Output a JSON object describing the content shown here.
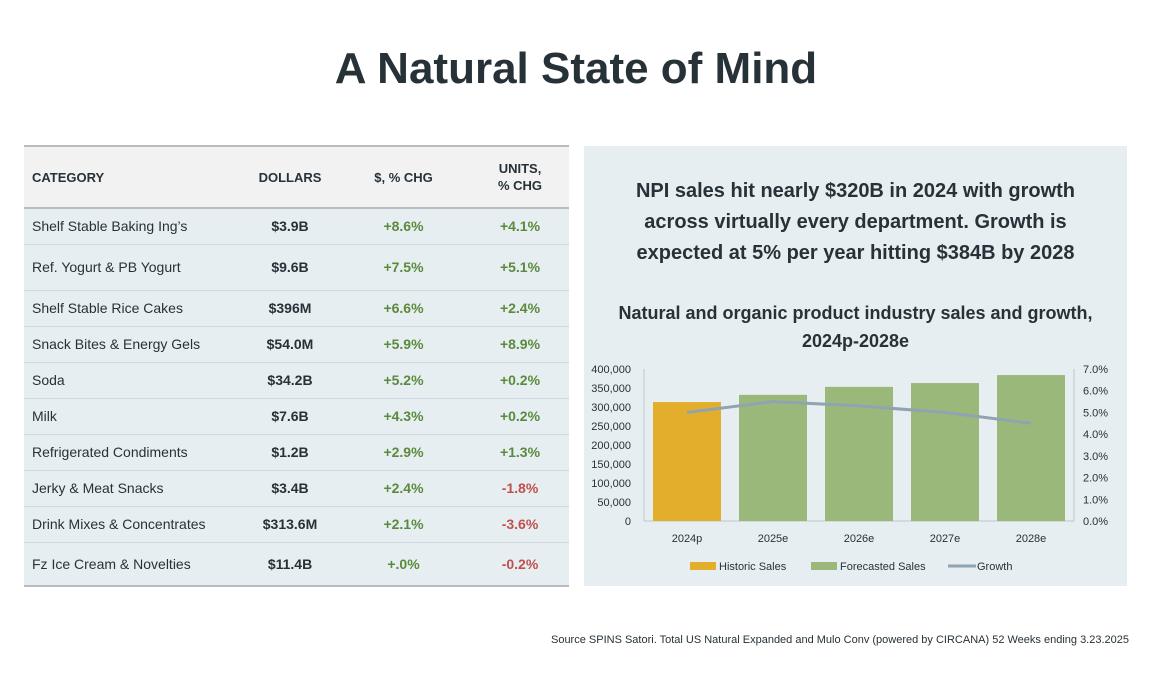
{
  "page": {
    "title": "A Natural State of Mind",
    "source": "Source SPINS Satori. Total US Natural Expanded and Mulo Conv (powered by CIRCANA) 52 Weeks ending 3.23.2025"
  },
  "table": {
    "headers": {
      "category": "CATEGORY",
      "dollars": "DOLLARS",
      "dollars_chg": "$, % CHG",
      "units_chg_line1": "UNITS,",
      "units_chg_line2": "% CHG"
    },
    "rows": [
      {
        "category": "Shelf Stable Baking Ing’s",
        "dollars": "$3.9B",
        "dollars_chg": "+8.6%",
        "units_chg": "+4.1%"
      },
      {
        "category": "Ref. Yogurt & PB Yogurt",
        "dollars": "$9.6B",
        "dollars_chg": "+7.5%",
        "units_chg": "+5.1%"
      },
      {
        "category": "Shelf Stable Rice Cakes",
        "dollars": "$396M",
        "dollars_chg": "+6.6%",
        "units_chg": "+2.4%"
      },
      {
        "category": "Snack Bites & Energy Gels",
        "dollars": "$54.0M",
        "dollars_chg": "+5.9%",
        "units_chg": "+8.9%"
      },
      {
        "category": "Soda",
        "dollars": "$34.2B",
        "dollars_chg": "+5.2%",
        "units_chg": "+0.2%"
      },
      {
        "category": "Milk",
        "dollars": "$7.6B",
        "dollars_chg": "+4.3%",
        "units_chg": "+0.2%"
      },
      {
        "category": "Refrigerated Condiments",
        "dollars": "$1.2B",
        "dollars_chg": "+2.9%",
        "units_chg": "+1.3%"
      },
      {
        "category": "Jerky & Meat Snacks",
        "dollars": "$3.4B",
        "dollars_chg": "+2.4%",
        "units_chg": "-1.8%"
      },
      {
        "category": "Drink Mixes & Concentrates",
        "dollars": "$313.6M",
        "dollars_chg": "+2.1%",
        "units_chg": "-3.6%"
      },
      {
        "category": "Fz Ice Cream & Novelties",
        "dollars": "$11.4B",
        "dollars_chg": "+.0%",
        "units_chg": "-0.2%"
      }
    ],
    "colors": {
      "positive": "#5b8a3c",
      "negative": "#c0504d"
    }
  },
  "panel": {
    "headline_line1": "NPI sales hit nearly $320B in 2024 with growth",
    "headline_line2": "across virtually every department. Growth is",
    "headline_line3": "expected at 5% per year hitting $384B by 2028"
  },
  "chart_data": {
    "type": "bar",
    "title_line1": "Natural and organic product industry sales and growth,",
    "title_line2": "2024p-2028e",
    "categories": [
      "2024p",
      "2025e",
      "2026e",
      "2027e",
      "2028e"
    ],
    "series": [
      {
        "name": "Historic Sales",
        "kind": "bar",
        "axis": "left",
        "color": "#e3ae2b",
        "values": [
          313000,
          null,
          null,
          null,
          null
        ]
      },
      {
        "name": "Forecasted Sales",
        "kind": "bar",
        "axis": "left",
        "color": "#9bb87b",
        "values": [
          null,
          332000,
          353000,
          363000,
          384000
        ]
      },
      {
        "name": "Growth",
        "kind": "line",
        "axis": "right",
        "color": "#8fa3b1",
        "values": [
          5.0,
          5.5,
          5.3,
          5.0,
          4.5
        ]
      }
    ],
    "y_left": {
      "min": 0,
      "max": 400000,
      "step": 50000,
      "ticks": [
        "0",
        "50,000",
        "100,000",
        "150,000",
        "200,000",
        "250,000",
        "300,000",
        "350,000",
        "400,000"
      ]
    },
    "y_right": {
      "min": 0,
      "max": 7,
      "step": 1,
      "ticks": [
        "0.0%",
        "1.0%",
        "2.0%",
        "3.0%",
        "4.0%",
        "5.0%",
        "6.0%",
        "7.0%"
      ]
    },
    "legend_position": "bottom",
    "grid": false
  }
}
